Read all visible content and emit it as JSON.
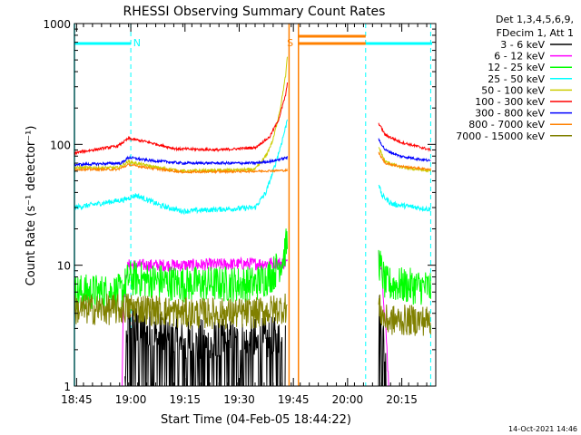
{
  "chart_data": {
    "type": "line",
    "title": "RHESSI Observing Summary Count Rates",
    "xlabel": "Start Time (04-Feb-05 18:44:22)",
    "ylabel": "Count Rate (s⁻¹ detector⁻¹)",
    "yscale": "log",
    "ylim": [
      1,
      1000
    ],
    "xlim_minutes": [
      0,
      100
    ],
    "x_ticks": [
      {
        "m": 0.6,
        "label": "18:45"
      },
      {
        "m": 15.6,
        "label": "19:00"
      },
      {
        "m": 30.6,
        "label": "19:15"
      },
      {
        "m": 45.6,
        "label": "19:30"
      },
      {
        "m": 60.6,
        "label": "19:45"
      },
      {
        "m": 75.6,
        "label": "20:00"
      },
      {
        "m": 90.6,
        "label": "20:15"
      }
    ],
    "y_ticks": [
      {
        "v": 1,
        "label": "1"
      },
      {
        "v": 10,
        "label": "10"
      },
      {
        "v": 100,
        "label": "100"
      },
      {
        "v": 1000,
        "label": "1000"
      }
    ],
    "legend_header": [
      "Det 1,3,4,5,6,9,",
      "FDecim 1, Att 1"
    ],
    "footer": "14-Oct-2021 14:46",
    "flags": [
      {
        "label": "N",
        "color": "#00ffff",
        "bars": [
          [
            0,
            15.6
          ],
          [
            80.6,
            99
          ]
        ],
        "lines": [
          15.6,
          80.6,
          98.6
        ],
        "text_at": 17.3
      },
      {
        "label": "S",
        "color": "#ff8000",
        "bars": [
          [
            62.0,
            80.6
          ]
        ],
        "lines": [
          62.0
        ],
        "text_at": 59.7
      }
    ],
    "gaps": [
      [
        59.4,
        62.0
      ],
      [
        80.6,
        84.2
      ]
    ],
    "series": [
      {
        "name": "3 - 6 keV",
        "color": "#000000",
        "noise": 0.6,
        "segments": [
          [
            [
              14.0,
              1.0
            ],
            [
              14.8,
              2.8
            ],
            [
              30,
              2.0
            ],
            [
              45,
              2.0
            ],
            [
              58.5,
              2.1
            ]
          ],
          [
            [
              84.2,
              3.8
            ],
            [
              85.5,
              2.2
            ],
            [
              86.5,
              1.0
            ]
          ]
        ]
      },
      {
        "name": "6 - 12 keV",
        "color": "#ff00ff",
        "noise": 0.12,
        "segments": [
          [
            [
              13.2,
              1.0
            ],
            [
              13.5,
              4.5
            ],
            [
              14.5,
              9.0
            ],
            [
              15,
              10.0
            ],
            [
              30,
              10.0
            ],
            [
              50,
              10.3
            ],
            [
              59,
              10.5
            ]
          ],
          [
            [
              84.2,
              12.0
            ],
            [
              85,
              10.0
            ],
            [
              86.5,
              2.0
            ],
            [
              87,
              1.0
            ]
          ]
        ]
      },
      {
        "name": "12 - 25 keV",
        "color": "#00ff00",
        "noise": 0.35,
        "segments": [
          [
            [
              0,
              6.0
            ],
            [
              13,
              6.0
            ],
            [
              15,
              7.8
            ],
            [
              30,
              7.0
            ],
            [
              50,
              7.0
            ],
            [
              55,
              8.5
            ],
            [
              57.5,
              11.0
            ],
            [
              59,
              16.0
            ]
          ],
          [
            [
              84.2,
              11.0
            ],
            [
              86,
              7.0
            ],
            [
              98.6,
              6.5
            ]
          ]
        ]
      },
      {
        "name": "25 - 50 keV",
        "color": "#00ffff",
        "noise": 0.05,
        "segments": [
          [
            [
              0,
              30
            ],
            [
              14,
              35
            ],
            [
              17,
              38
            ],
            [
              21,
              34
            ],
            [
              24,
              31
            ],
            [
              30,
              28
            ],
            [
              50,
              30
            ],
            [
              53,
              40
            ],
            [
              55,
              60
            ],
            [
              57,
              95
            ],
            [
              58.5,
              140
            ],
            [
              59,
              170
            ]
          ],
          [
            [
              84.2,
              48
            ],
            [
              85,
              38
            ],
            [
              88,
              32
            ],
            [
              98.6,
              29
            ]
          ]
        ]
      },
      {
        "name": "50 - 100 keV",
        "color": "#cccc00",
        "noise": 0.03,
        "segments": [
          [
            [
              0,
              64
            ],
            [
              12,
              64
            ],
            [
              15,
              72
            ],
            [
              22,
              65
            ],
            [
              30,
              60
            ],
            [
              50,
              62
            ],
            [
              53,
              80
            ],
            [
              55,
              110
            ],
            [
              57,
              200
            ],
            [
              58.5,
              380
            ],
            [
              59,
              560
            ]
          ],
          [
            [
              84.2,
              95
            ],
            [
              86,
              72
            ],
            [
              90,
              65
            ],
            [
              98.6,
              60
            ]
          ]
        ]
      },
      {
        "name": "100 - 300 keV",
        "color": "#ff0000",
        "noise": 0.025,
        "segments": [
          [
            [
              0,
              85
            ],
            [
              12,
              97
            ],
            [
              15,
              112
            ],
            [
              20,
              105
            ],
            [
              28,
              92
            ],
            [
              40,
              90
            ],
            [
              50,
              94
            ],
            [
              54,
              115
            ],
            [
              56.5,
              160
            ],
            [
              58.5,
              260
            ],
            [
              59,
              330
            ]
          ],
          [
            [
              84.2,
              150
            ],
            [
              86,
              120
            ],
            [
              90,
              105
            ],
            [
              98.6,
              90
            ]
          ]
        ]
      },
      {
        "name": "300 - 800 keV",
        "color": "#0000ff",
        "noise": 0.025,
        "segments": [
          [
            [
              0,
              68
            ],
            [
              13,
              70
            ],
            [
              15,
              78
            ],
            [
              20,
              74
            ],
            [
              30,
              70
            ],
            [
              50,
              70
            ],
            [
              55,
              73
            ],
            [
              59,
              78
            ]
          ],
          [
            [
              84.2,
              110
            ],
            [
              86,
              90
            ],
            [
              90,
              80
            ],
            [
              98.6,
              73
            ]
          ]
        ]
      },
      {
        "name": "800 - 7000 keV",
        "color": "#ff8000",
        "noise": 0.02,
        "segments": [
          [
            [
              0,
              62
            ],
            [
              12,
              62
            ],
            [
              15,
              68
            ],
            [
              22,
              63
            ],
            [
              30,
              59
            ],
            [
              50,
              60
            ],
            [
              59,
              61
            ]
          ],
          [
            [
              84.2,
              85
            ],
            [
              86,
              70
            ],
            [
              90,
              66
            ],
            [
              98.6,
              62
            ]
          ]
        ]
      },
      {
        "name": "7000 - 15000 keV",
        "color": "#808000",
        "noise": 0.3,
        "segments": [
          [
            [
              0,
              4.3
            ],
            [
              13,
              4.3
            ],
            [
              15,
              4.5
            ],
            [
              30,
              4.0
            ],
            [
              50,
              4.0
            ],
            [
              59,
              4.5
            ]
          ],
          [
            [
              84.2,
              4.5
            ],
            [
              86,
              3.5
            ],
            [
              98.6,
              3.5
            ]
          ]
        ]
      }
    ]
  }
}
